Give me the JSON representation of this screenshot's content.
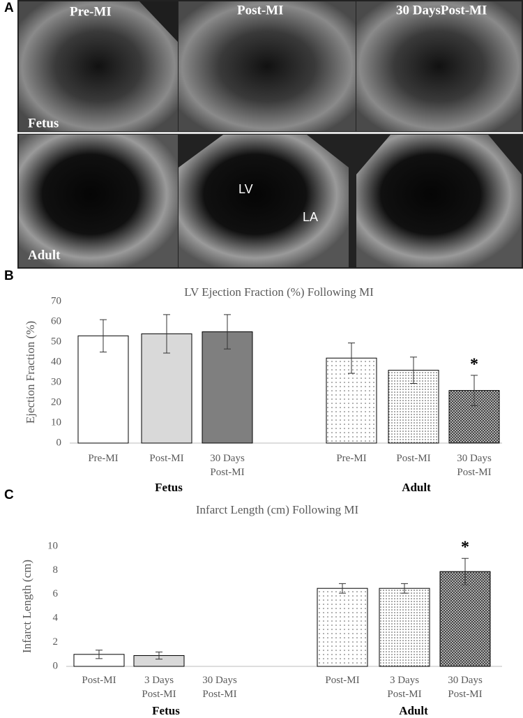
{
  "panel_a": {
    "panel_label": "A",
    "column_labels": [
      "Pre-MI",
      "Post-MI",
      "30 DaysPost-MI"
    ],
    "row_labels": [
      "Fetus",
      "Adult"
    ],
    "chamber_labels": [
      "LV",
      "LA"
    ]
  },
  "panel_labels": [
    "B",
    "C"
  ],
  "chart_data": [
    {
      "type": "bar",
      "title": "LV Ejection Fraction (%) Following MI",
      "y_label": "Ejection Fraction (%)",
      "categories": [
        "Pre-MI",
        "Post-MI",
        "30 Days Post-MI",
        "Pre-MI",
        "Post-MI",
        "30 Days Post-MI"
      ],
      "group_labels": [
        "Fetus",
        "Adult"
      ],
      "values": [
        53,
        54,
        55,
        42,
        36,
        26
      ],
      "errors": [
        8,
        9.5,
        8.5,
        7.5,
        6.5,
        7.5
      ],
      "fills": [
        "#ffffff",
        "#d9d9d9",
        "#7f7f7f",
        "dots-light",
        "dots-medium",
        "dots-dense"
      ],
      "ylim": [
        0,
        70
      ],
      "yticks": [
        0,
        10,
        20,
        30,
        40,
        50,
        60,
        70
      ],
      "grid": false,
      "annotations": [
        {
          "text": "*",
          "index": 5
        }
      ]
    },
    {
      "type": "bar",
      "title": "Infarct Length (cm) Following MI",
      "y_label": "Infarct Length (cm)",
      "categories": [
        "Post-MI",
        "3 Days Post-MI",
        "30 Days Post-MI",
        "Post-MI",
        "3 Days Post-MI",
        "30 Days Post-MI"
      ],
      "group_labels": [
        "Fetus",
        "Adult"
      ],
      "values": [
        1.0,
        0.9,
        null,
        6.5,
        6.5,
        7.9
      ],
      "errors": [
        0.35,
        0.3,
        null,
        0.4,
        0.4,
        1.1
      ],
      "fills": [
        "#ffffff",
        "#d9d9d9",
        "#7f7f7f",
        "dots-light",
        "dots-medium",
        "dots-dense"
      ],
      "ylim": [
        0,
        10
      ],
      "yticks": [
        0,
        2,
        4,
        6,
        8,
        10
      ],
      "grid": false,
      "annotations": [
        {
          "text": "*",
          "index": 5
        }
      ]
    }
  ]
}
